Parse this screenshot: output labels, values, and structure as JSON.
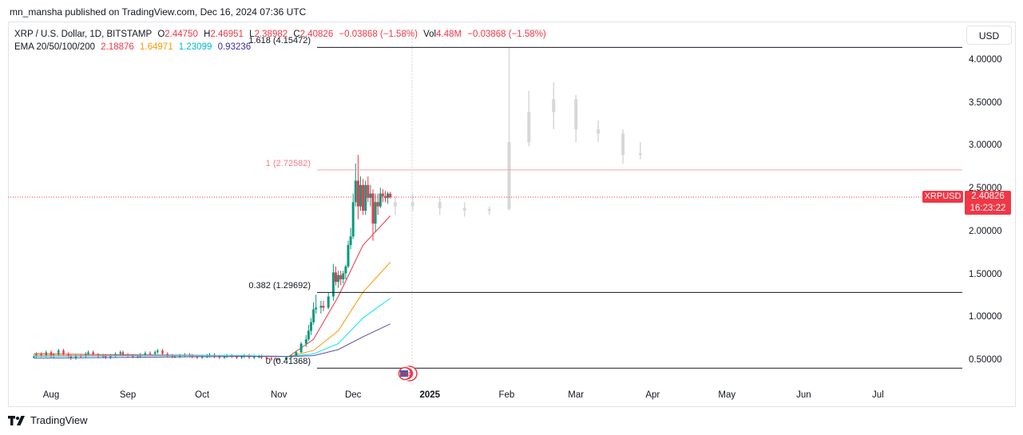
{
  "header": {
    "publisher": "mn_mansha published on TradingView.com, Dec 16, 2024 07:36 UTC"
  },
  "legend": {
    "symbol": "XRP / U.S. Dollar, 1D, BITSTAMP",
    "o_label": "O",
    "o": "2.44750",
    "h_label": "H",
    "h": "2.46951",
    "l_label": "L",
    "l": "2.38982",
    "c_label": "C",
    "c": "2.40826",
    "change": "−0.03868 (−1.58%)",
    "vol_label": "Vol",
    "vol": "4.48M",
    "vol_change": "−0.03868 (−1.58%)",
    "ema_label": "EMA 20/50/100/200",
    "ema20": "2.18876",
    "ema50": "1.64971",
    "ema100": "1.23099",
    "ema200": "0.93236"
  },
  "currency_button": "USD",
  "price_tag": {
    "symbol": "XRPUSD",
    "price": "2.40826",
    "countdown": "16:23:22"
  },
  "brand": "TradingView",
  "colors": {
    "up": "#089981",
    "down": "#f23645",
    "ema20": "#f23645",
    "ema50": "#ff9800",
    "ema100": "#00e5ff",
    "ema200": "#5b4fa8",
    "fib_level_1": "#f7a1a9",
    "fib_other": "#131722",
    "projection": "#d7d7d7",
    "last_price_line": "#f23645"
  },
  "icons": {
    "flag": "us-flag-icon",
    "logo": "tradingview-logo-icon"
  },
  "chart_data": {
    "type": "candlestick",
    "series": [
      {
        "name": "XRPUSD",
        "ohlc": [
          {
            "date": "2024-11-01",
            "o": 0.51,
            "h": 0.53,
            "l": 0.5,
            "c": 0.52
          },
          {
            "date": "2024-11-04",
            "o": 0.52,
            "h": 0.55,
            "l": 0.51,
            "c": 0.54
          },
          {
            "date": "2024-11-06",
            "o": 0.54,
            "h": 0.57,
            "l": 0.53,
            "c": 0.56
          },
          {
            "date": "2024-11-08",
            "o": 0.56,
            "h": 0.62,
            "l": 0.55,
            "c": 0.6
          },
          {
            "date": "2024-11-10",
            "o": 0.6,
            "h": 0.72,
            "l": 0.59,
            "c": 0.7
          },
          {
            "date": "2024-11-12",
            "o": 0.7,
            "h": 0.8,
            "l": 0.66,
            "c": 0.75
          },
          {
            "date": "2024-11-13",
            "o": 0.75,
            "h": 0.92,
            "l": 0.73,
            "c": 0.85
          },
          {
            "date": "2024-11-14",
            "o": 0.85,
            "h": 1.0,
            "l": 0.8,
            "c": 0.95
          },
          {
            "date": "2024-11-15",
            "o": 0.95,
            "h": 1.18,
            "l": 0.92,
            "c": 1.1
          },
          {
            "date": "2024-11-16",
            "o": 1.1,
            "h": 1.27,
            "l": 1.05,
            "c": 1.12
          },
          {
            "date": "2024-11-18",
            "o": 1.12,
            "h": 1.2,
            "l": 1.05,
            "c": 1.14
          },
          {
            "date": "2024-11-19",
            "o": 1.14,
            "h": 1.2,
            "l": 1.08,
            "c": 1.12
          },
          {
            "date": "2024-11-21",
            "o": 1.12,
            "h": 1.3,
            "l": 1.1,
            "c": 1.25
          },
          {
            "date": "2024-11-23",
            "o": 1.25,
            "h": 1.63,
            "l": 1.2,
            "c": 1.53
          },
          {
            "date": "2024-11-24",
            "o": 1.53,
            "h": 1.6,
            "l": 1.38,
            "c": 1.42
          },
          {
            "date": "2024-11-25",
            "o": 1.42,
            "h": 1.55,
            "l": 1.35,
            "c": 1.5
          },
          {
            "date": "2024-11-26",
            "o": 1.5,
            "h": 1.55,
            "l": 1.38,
            "c": 1.45
          },
          {
            "date": "2024-11-27",
            "o": 1.45,
            "h": 1.55,
            "l": 1.4,
            "c": 1.52
          },
          {
            "date": "2024-11-28",
            "o": 1.52,
            "h": 1.62,
            "l": 1.45,
            "c": 1.6
          },
          {
            "date": "2024-11-29",
            "o": 1.6,
            "h": 1.9,
            "l": 1.58,
            "c": 1.85
          },
          {
            "date": "2024-11-30",
            "o": 1.85,
            "h": 2.05,
            "l": 1.8,
            "c": 1.95
          },
          {
            "date": "2024-12-01",
            "o": 1.95,
            "h": 2.45,
            "l": 1.92,
            "c": 2.35
          },
          {
            "date": "2024-12-02",
            "o": 2.35,
            "h": 2.8,
            "l": 2.3,
            "c": 2.6
          },
          {
            "date": "2024-12-03",
            "o": 2.6,
            "h": 2.9,
            "l": 2.15,
            "c": 2.3
          },
          {
            "date": "2024-12-04",
            "o": 2.3,
            "h": 2.65,
            "l": 2.25,
            "c": 2.55
          },
          {
            "date": "2024-12-05",
            "o": 2.55,
            "h": 2.62,
            "l": 2.2,
            "c": 2.25
          },
          {
            "date": "2024-12-06",
            "o": 2.25,
            "h": 2.6,
            "l": 2.2,
            "c": 2.55
          },
          {
            "date": "2024-12-07",
            "o": 2.55,
            "h": 2.65,
            "l": 2.35,
            "c": 2.4
          },
          {
            "date": "2024-12-08",
            "o": 2.4,
            "h": 2.55,
            "l": 2.3,
            "c": 2.45
          },
          {
            "date": "2024-12-09",
            "o": 2.45,
            "h": 2.5,
            "l": 1.9,
            "c": 2.1
          },
          {
            "date": "2024-12-10",
            "o": 2.1,
            "h": 2.45,
            "l": 2.0,
            "c": 2.35
          },
          {
            "date": "2024-12-11",
            "o": 2.35,
            "h": 2.45,
            "l": 2.2,
            "c": 2.3
          },
          {
            "date": "2024-12-12",
            "o": 2.3,
            "h": 2.52,
            "l": 2.28,
            "c": 2.45
          },
          {
            "date": "2024-12-13",
            "o": 2.45,
            "h": 2.5,
            "l": 2.35,
            "c": 2.42
          },
          {
            "date": "2024-12-14",
            "o": 2.42,
            "h": 2.48,
            "l": 2.35,
            "c": 2.4
          },
          {
            "date": "2024-12-15",
            "o": 2.4,
            "h": 2.47,
            "l": 2.33,
            "c": 2.45
          },
          {
            "date": "2024-12-16",
            "o": 2.4475,
            "h": 2.46951,
            "l": 2.38982,
            "c": 2.40826
          }
        ]
      },
      {
        "name": "EMA 20",
        "points": [
          [
            "2024-07-25",
            0.58
          ],
          [
            "2024-09-01",
            0.57
          ],
          [
            "2024-10-15",
            0.56
          ],
          [
            "2024-11-05",
            0.55
          ],
          [
            "2024-11-15",
            0.75
          ],
          [
            "2024-11-25",
            1.25
          ],
          [
            "2024-12-05",
            1.85
          ],
          [
            "2024-12-16",
            2.19
          ]
        ]
      },
      {
        "name": "EMA 50",
        "points": [
          [
            "2024-07-25",
            0.56
          ],
          [
            "2024-09-01",
            0.56
          ],
          [
            "2024-10-15",
            0.56
          ],
          [
            "2024-11-05",
            0.55
          ],
          [
            "2024-11-15",
            0.62
          ],
          [
            "2024-11-25",
            0.85
          ],
          [
            "2024-12-05",
            1.3
          ],
          [
            "2024-12-16",
            1.65
          ]
        ]
      },
      {
        "name": "EMA 100",
        "points": [
          [
            "2024-07-25",
            0.55
          ],
          [
            "2024-09-01",
            0.56
          ],
          [
            "2024-10-15",
            0.56
          ],
          [
            "2024-11-05",
            0.55
          ],
          [
            "2024-11-15",
            0.58
          ],
          [
            "2024-11-25",
            0.7
          ],
          [
            "2024-12-05",
            1.0
          ],
          [
            "2024-12-16",
            1.23
          ]
        ]
      },
      {
        "name": "EMA 200",
        "points": [
          [
            "2024-07-25",
            0.53
          ],
          [
            "2024-09-01",
            0.54
          ],
          [
            "2024-10-15",
            0.55
          ],
          [
            "2024-11-05",
            0.55
          ],
          [
            "2024-11-15",
            0.56
          ],
          [
            "2024-11-25",
            0.63
          ],
          [
            "2024-12-05",
            0.78
          ],
          [
            "2024-12-16",
            0.93
          ]
        ]
      },
      {
        "name": "Projection",
        "ohlc": [
          {
            "date": "2024-12-18",
            "o": 2.35,
            "h": 2.42,
            "l": 2.2,
            "c": 2.3
          },
          {
            "date": "2024-12-25",
            "o": 2.3,
            "h": 2.45,
            "l": 2.25,
            "c": 2.35
          },
          {
            "date": "2025-01-05",
            "o": 2.35,
            "h": 2.4,
            "l": 2.2,
            "c": 2.28
          },
          {
            "date": "2025-01-15",
            "o": 2.28,
            "h": 2.35,
            "l": 2.18,
            "c": 2.25
          },
          {
            "date": "2025-01-25",
            "o": 2.25,
            "h": 2.3,
            "l": 2.2,
            "c": 2.27
          },
          {
            "date": "2025-02-02",
            "o": 2.27,
            "h": 4.15,
            "l": 2.25,
            "c": 3.05
          },
          {
            "date": "2025-02-10",
            "o": 3.05,
            "h": 3.65,
            "l": 3.0,
            "c": 3.4
          },
          {
            "date": "2025-02-20",
            "o": 3.4,
            "h": 3.75,
            "l": 3.2,
            "c": 3.55
          },
          {
            "date": "2025-03-01",
            "o": 3.55,
            "h": 3.6,
            "l": 3.05,
            "c": 3.2
          },
          {
            "date": "2025-03-10",
            "o": 3.2,
            "h": 3.3,
            "l": 3.05,
            "c": 3.15
          },
          {
            "date": "2025-03-20",
            "o": 3.15,
            "h": 3.2,
            "l": 2.8,
            "c": 2.9
          },
          {
            "date": "2025-03-27",
            "o": 2.9,
            "h": 3.05,
            "l": 2.85,
            "c": 2.92
          }
        ]
      }
    ],
    "intraday_history": [
      0.55,
      0.58,
      0.56,
      0.6,
      0.55,
      0.57,
      0.62,
      0.58,
      0.55,
      0.53,
      0.56,
      0.55,
      0.58,
      0.6,
      0.57,
      0.55,
      0.56,
      0.54,
      0.56,
      0.58,
      0.6,
      0.57,
      0.56,
      0.55,
      0.55,
      0.57,
      0.59,
      0.58,
      0.6,
      0.62,
      0.58,
      0.56,
      0.55,
      0.55,
      0.56,
      0.57,
      0.56,
      0.55,
      0.54,
      0.55,
      0.56,
      0.57,
      0.55,
      0.54,
      0.55,
      0.56,
      0.55,
      0.54,
      0.55,
      0.56,
      0.54,
      0.55,
      0.55,
      0.54,
      0.53,
      0.52,
      0.51
    ],
    "fibonacci": [
      {
        "label": "0 (0.41368)",
        "value": 0.41368
      },
      {
        "label": "0.382 (1.29692)",
        "value": 1.29692
      },
      {
        "label": "1 (2.72582)",
        "value": 2.72582
      },
      {
        "label": "1.618 (4.15472)",
        "value": 4.15472
      }
    ],
    "last_price": 2.40826,
    "y_ticks": [
      "4.00000",
      "3.50000",
      "3.00000",
      "2.50000",
      "2.00000",
      "1.50000",
      "1.00000",
      "0.50000"
    ],
    "x_ticks": [
      "Aug",
      "Sep",
      "Oct",
      "Nov",
      "Dec",
      "2025",
      "Feb",
      "Mar",
      "Apr",
      "May",
      "Jun",
      "Jul"
    ],
    "ylim": [
      0.15,
      4.3
    ]
  }
}
